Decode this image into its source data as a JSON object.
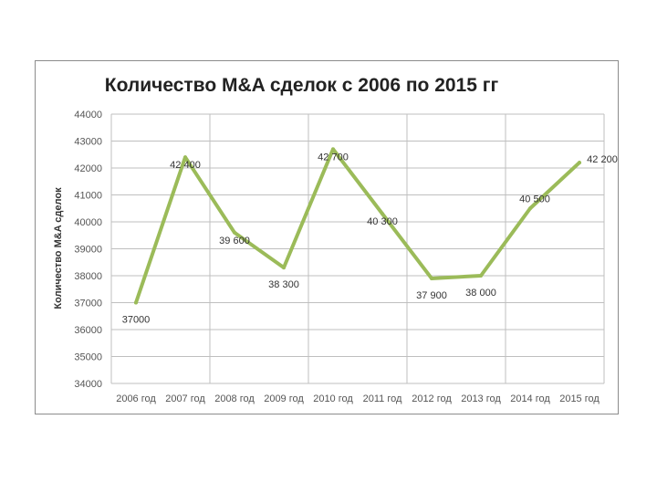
{
  "chart_data": {
    "type": "line",
    "title": "Количество M&A сделок с 2006 по 2015 гг",
    "xlabel": "",
    "ylabel": "Количество M&A сделок",
    "categories": [
      "2006 год",
      "2007 год",
      "2008 год",
      "2009 год",
      "2010 год",
      "2011 год",
      "2012 год",
      "2013 год",
      "2014 год",
      "2015 год"
    ],
    "series": [
      {
        "values": [
          37000,
          42400,
          39600,
          38300,
          42700,
          40300,
          37900,
          38000,
          40500,
          42200
        ],
        "data_labels": [
          "37000",
          "42 400",
          "39 600",
          "38 300",
          "42 700",
          "40 300",
          "37 900",
          "38 000",
          "40 500",
          "42 200"
        ],
        "color": "#9bbb59"
      }
    ],
    "ylim": [
      34000,
      44000
    ],
    "yticks": [
      34000,
      35000,
      36000,
      37000,
      38000,
      39000,
      40000,
      41000,
      42000,
      43000,
      44000
    ],
    "grid": true
  }
}
